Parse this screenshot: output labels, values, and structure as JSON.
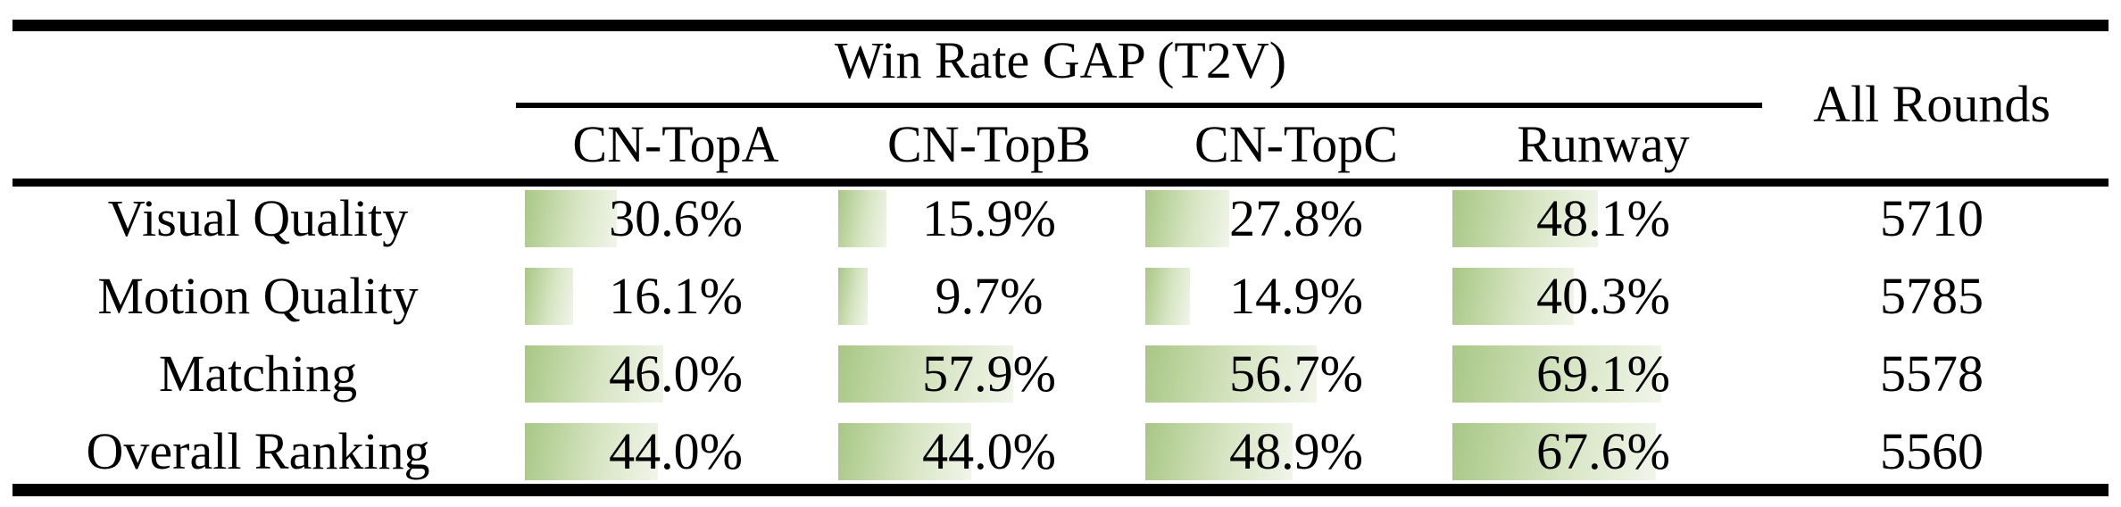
{
  "table": {
    "group_header": "Win Rate GAP (T2V)",
    "all_rounds_header": "All Rounds",
    "method_columns": [
      "CN-TopA",
      "CN-TopB",
      "CN-TopC",
      "Runway"
    ],
    "rows": [
      {
        "label": "Visual Quality",
        "cells": [
          {
            "text": "30.6%",
            "pct": 30.6
          },
          {
            "text": "15.9%",
            "pct": 15.9
          },
          {
            "text": "27.8%",
            "pct": 27.8
          },
          {
            "text": "48.1%",
            "pct": 48.1
          }
        ],
        "all_rounds": "5710"
      },
      {
        "label": "Motion Quality",
        "cells": [
          {
            "text": "16.1%",
            "pct": 16.1
          },
          {
            "text": "9.7%",
            "pct": 9.7
          },
          {
            "text": "14.9%",
            "pct": 14.9
          },
          {
            "text": "40.3%",
            "pct": 40.3
          }
        ],
        "all_rounds": "5785"
      },
      {
        "label": "Matching",
        "cells": [
          {
            "text": "46.0%",
            "pct": 46.0
          },
          {
            "text": "57.9%",
            "pct": 57.9
          },
          {
            "text": "56.7%",
            "pct": 56.7
          },
          {
            "text": "69.1%",
            "pct": 69.1
          }
        ],
        "all_rounds": "5578"
      },
      {
        "label": "Overall Ranking",
        "cells": [
          {
            "text": "44.0%",
            "pct": 44.0
          },
          {
            "text": "44.0%",
            "pct": 44.0
          },
          {
            "text": "48.9%",
            "pct": 48.9
          },
          {
            "text": "67.6%",
            "pct": 67.6
          }
        ],
        "all_rounds": "5560"
      }
    ]
  },
  "style": {
    "rule_color": "#000000",
    "bar_color_start": "#a8c785",
    "bar_color_mid": "#d7e5c3",
    "bar_color_end": "#f1f5ea"
  }
}
